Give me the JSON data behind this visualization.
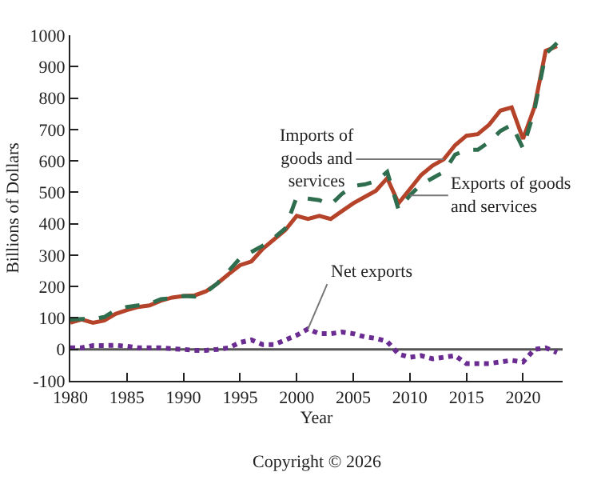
{
  "chart_data": {
    "type": "line",
    "xlabel": "Year",
    "ylabel": "Billions of Dollars",
    "x": [
      1980,
      1981,
      1982,
      1983,
      1984,
      1985,
      1986,
      1987,
      1988,
      1989,
      1990,
      1991,
      1992,
      1993,
      1994,
      1995,
      1996,
      1997,
      1998,
      1999,
      2000,
      2001,
      2002,
      2003,
      2004,
      2005,
      2006,
      2007,
      2008,
      2009,
      2010,
      2011,
      2012,
      2013,
      2014,
      2015,
      2016,
      2017,
      2018,
      2019,
      2020,
      2021,
      2022,
      2023
    ],
    "series": [
      {
        "color": "#b5432a",
        "line_style": "solid",
        "values": [
          85,
          95,
          85,
          92,
          113,
          125,
          135,
          140,
          155,
          165,
          170,
          172,
          185,
          210,
          240,
          268,
          280,
          320,
          350,
          380,
          425,
          415,
          425,
          415,
          440,
          465,
          485,
          505,
          545,
          465,
          510,
          555,
          585,
          605,
          650,
          680,
          685,
          715,
          760,
          770,
          670,
          770,
          950,
          965
        ]
      },
      {
        "color": "#2e6e4e",
        "line_style": "dashed",
        "values": [
          95,
          97,
          96,
          103,
          125,
          135,
          140,
          145,
          160,
          163,
          170,
          168,
          182,
          210,
          250,
          290,
          310,
          330,
          355,
          385,
          485,
          480,
          475,
          460,
          495,
          520,
          525,
          535,
          565,
          445,
          490,
          525,
          545,
          565,
          620,
          635,
          635,
          660,
          695,
          715,
          640,
          760,
          940,
          975
        ]
      },
      {
        "color": "#6a2c91",
        "line_style": "dotted",
        "values": [
          5,
          5,
          12,
          12,
          13,
          10,
          5,
          5,
          5,
          2,
          0,
          -3,
          -3,
          0,
          5,
          22,
          30,
          15,
          15,
          30,
          45,
          65,
          50,
          50,
          55,
          50,
          40,
          35,
          25,
          -15,
          -25,
          -20,
          -30,
          -25,
          -20,
          -45,
          -45,
          -45,
          -40,
          -35,
          -40,
          0,
          5,
          -10
        ]
      }
    ],
    "xlim": [
      1980,
      2023.5
    ],
    "ylim": [
      -100,
      1000
    ],
    "xticks": [
      1980,
      1985,
      1990,
      1995,
      2000,
      2005,
      2010,
      2015,
      2020
    ],
    "yticks": [
      -100,
      0,
      100,
      200,
      300,
      400,
      500,
      600,
      700,
      800,
      900,
      1000
    ],
    "marker": "none",
    "ref_lines": [
      {
        "axis": "y",
        "value": 0,
        "color": "#555555"
      }
    ],
    "annotations": [
      {
        "text": "Imports of\ngoods and\nservices",
        "x": 2013,
        "y": 605
      },
      {
        "text": "Exports of goods\nand services",
        "x": 2010,
        "y": 490
      },
      {
        "text": "Net exports",
        "x": 2001,
        "y": 65
      },
      "Copyright © 2026"
    ]
  }
}
